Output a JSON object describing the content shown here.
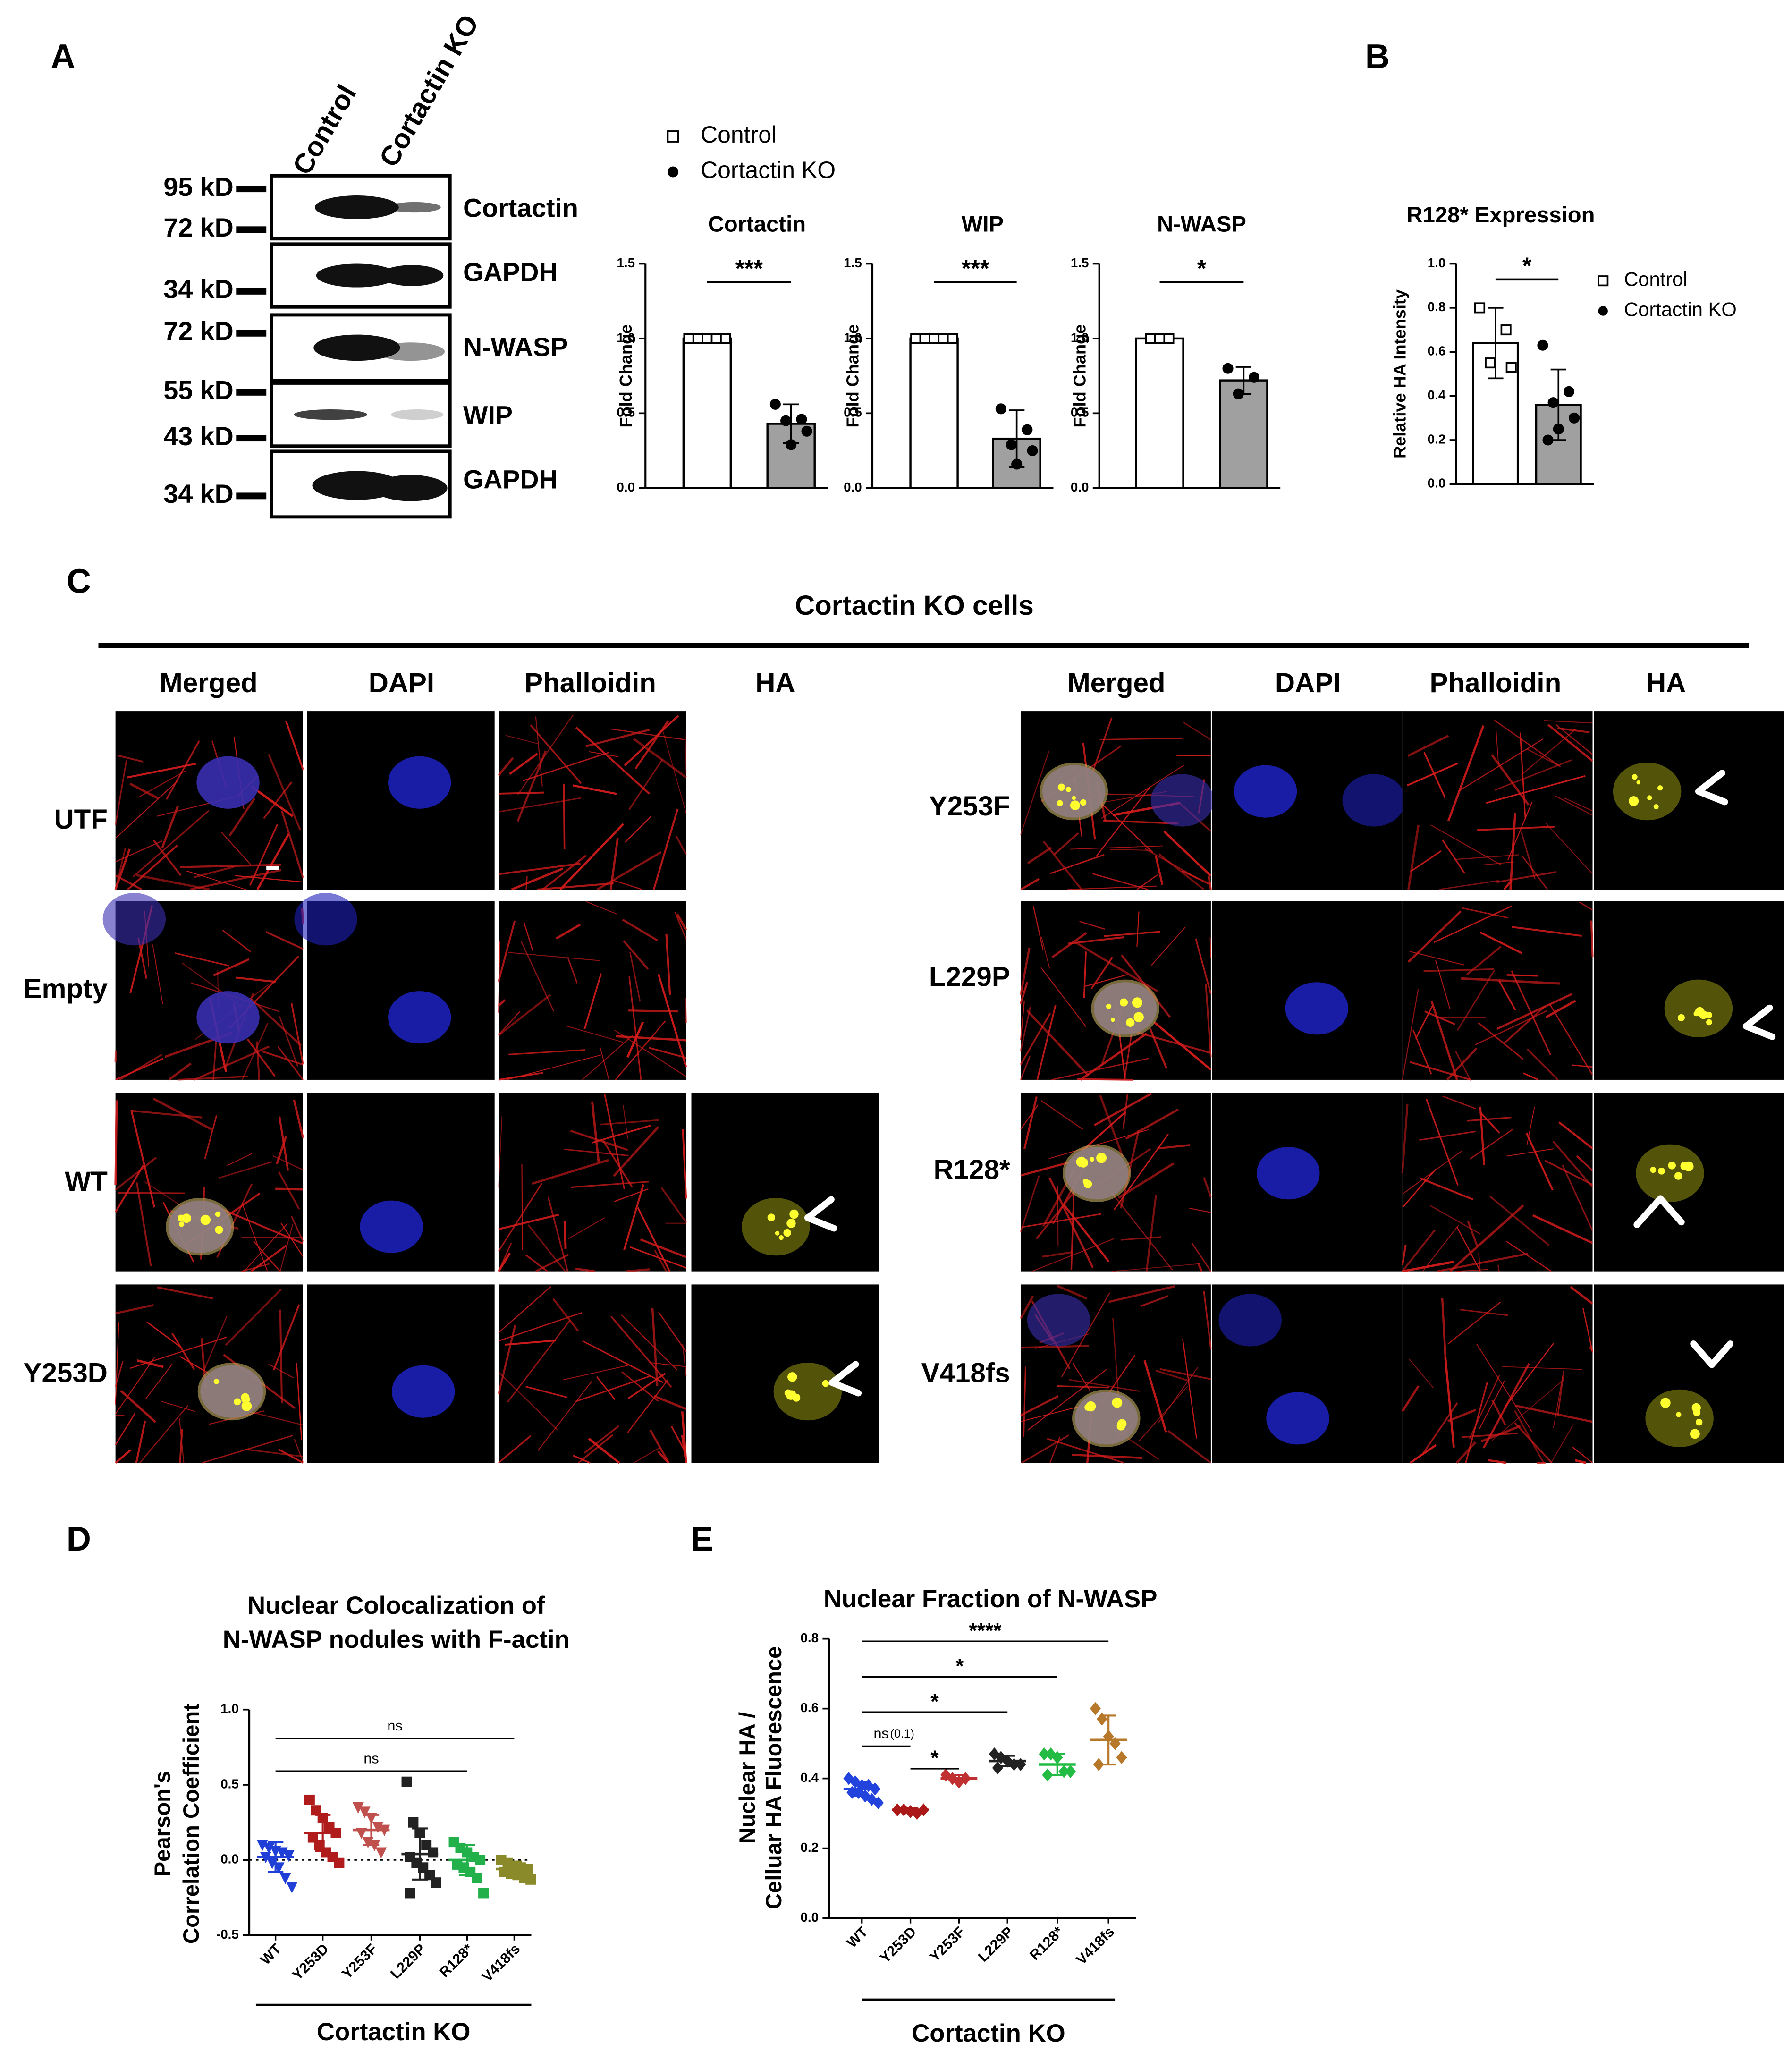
{
  "panel_labels": [
    "A",
    "B",
    "C",
    "D",
    "E"
  ],
  "blot": {
    "lanes": [
      "Control",
      "Cortactin KO"
    ],
    "markers": [
      "95 kD",
      "72 kD",
      "34 kD",
      "72 kD",
      "55 kD",
      "43 kD",
      "34 kD"
    ],
    "proteins": [
      "Cortactin",
      "GAPDH",
      "N-WASP",
      "WIP",
      "GAPDH"
    ]
  },
  "panel_a_legend": [
    "Control",
    "Cortactin KO"
  ],
  "chart_data": [
    {
      "type": "bar",
      "title": "Cortactin",
      "ylabel": "Fold Change",
      "categories": [
        null,
        null
      ],
      "values": [
        1.0,
        0.43
      ],
      "errors": [
        0,
        0.13
      ],
      "points": [
        [
          1,
          1,
          1,
          1,
          1
        ],
        [
          0.56,
          0.46,
          0.45,
          0.38,
          0.29
        ]
      ],
      "colors": [
        "#ffffff",
        "#a0a0a0"
      ],
      "markers": [
        "square",
        "circle"
      ],
      "significance": "***",
      "ylim": [
        0,
        1.5
      ],
      "yticks": [
        {
          "value": 0,
          "label": "0.0"
        },
        0.5,
        {
          "value": 1,
          "label": "1.0"
        },
        1.5
      ]
    },
    {
      "type": "bar",
      "title": "WIP",
      "ylabel": "Fold Change",
      "categories": [
        null,
        null
      ],
      "values": [
        1.0,
        0.33
      ],
      "errors": [
        0,
        0.19
      ],
      "points": [
        [
          1,
          1,
          1,
          1,
          1
        ],
        [
          0.53,
          0.39,
          0.29,
          0.25,
          0.16
        ]
      ],
      "colors": [
        "#ffffff",
        "#a0a0a0"
      ],
      "markers": [
        "square",
        "circle"
      ],
      "significance": "***",
      "ylim": [
        0,
        1.5
      ],
      "yticks": [
        {
          "value": 0,
          "label": "0.0"
        },
        0.5,
        {
          "value": 1,
          "label": "1.0"
        },
        1.5
      ]
    },
    {
      "type": "bar",
      "title": "N-WASP",
      "ylabel": "Fold Change",
      "categories": [
        null,
        null
      ],
      "values": [
        1.0,
        0.72
      ],
      "errors": [
        0,
        0.09
      ],
      "points": [
        [
          1,
          1,
          1
        ],
        [
          0.8,
          0.74,
          0.63
        ]
      ],
      "colors": [
        "#ffffff",
        "#a0a0a0"
      ],
      "markers": [
        "square",
        "circle"
      ],
      "significance": "*",
      "ylim": [
        0,
        1.5
      ],
      "yticks": [
        {
          "value": 0,
          "label": "0.0"
        },
        0.5,
        {
          "value": 1,
          "label": "1.0"
        },
        1.5
      ]
    },
    {
      "type": "bar",
      "title": "R128* Expression",
      "ylabel": "Relative HA Intensity",
      "categories": [
        null,
        null
      ],
      "values": [
        0.64,
        0.36
      ],
      "errors": [
        0.16,
        0.16
      ],
      "points": [
        [
          0.8,
          0.7,
          0.55,
          0.53
        ],
        [
          0.63,
          0.42,
          0.37,
          0.3,
          0.25,
          0.2
        ]
      ],
      "colors": [
        "#ffffff",
        "#a0a0a0"
      ],
      "markers": [
        "square",
        "circle"
      ],
      "significance": "*",
      "legend": [
        "Control",
        "Cortactin KO"
      ],
      "ylim": [
        0,
        1.0
      ],
      "yticks": [
        {
          "value": 0,
          "label": "0.0"
        },
        0.2,
        0.4,
        0.6,
        0.8,
        {
          "value": 1,
          "label": "1.0"
        }
      ]
    },
    {
      "type": "dot",
      "title": [
        "Nuclear Colocalization of",
        "N-WASP nodules with F-actin"
      ],
      "ylabel": [
        "Pearson's",
        "Correlation Coefficient"
      ],
      "group_label": "Cortactin KO",
      "categories": [
        "WT",
        "Y253D",
        "Y253F",
        "L229P",
        "R128*",
        "V418fs"
      ],
      "means": [
        0.02,
        0.18,
        0.2,
        0.04,
        0.0,
        -0.06
      ],
      "sd": [
        0.1,
        0.12,
        0.1,
        0.17,
        0.1,
        0.05
      ],
      "points": [
        [
          0.1,
          0.08,
          0.06,
          0.05,
          0.03,
          0.02,
          -0.02,
          -0.05,
          -0.12,
          -0.18
        ],
        [
          0.4,
          0.33,
          0.28,
          0.22,
          0.18,
          0.15,
          0.1,
          0.05,
          0.02,
          -0.02
        ],
        [
          0.35,
          0.32,
          0.28,
          0.22,
          0.2,
          0.18,
          0.12,
          0.1,
          0.05
        ],
        [
          0.52,
          0.25,
          0.18,
          0.1,
          0.05,
          0.02,
          -0.02,
          -0.05,
          -0.1,
          -0.15,
          -0.22
        ],
        [
          0.12,
          0.08,
          0.05,
          0.02,
          0.0,
          -0.03,
          -0.05,
          -0.08,
          -0.12,
          -0.22
        ],
        [
          0.0,
          -0.02,
          -0.04,
          -0.05,
          -0.06,
          -0.08,
          -0.09,
          -0.1,
          -0.12,
          -0.13
        ]
      ],
      "colors": [
        "#1f3fd6",
        "#b01c1c",
        "#c0504d",
        "#222222",
        "#22b04a",
        "#8a8a2a"
      ],
      "markers": [
        "triangle-down",
        "square",
        "triangle-down",
        "square",
        "square",
        "square"
      ],
      "zero_line": true,
      "annotations": [
        {
          "text": "ns",
          "from": "WT",
          "to": "V418fs"
        },
        {
          "text": "ns",
          "from": "WT",
          "to": "R128*"
        }
      ],
      "ylim": [
        -0.5,
        1.0
      ],
      "yticks": [
        -0.5,
        {
          "value": 0,
          "label": "0.0"
        },
        0.5,
        {
          "value": 1,
          "label": "1.0"
        }
      ]
    },
    {
      "type": "dot",
      "title": "Nuclear Fraction of N-WASP",
      "ylabel": [
        "Nuclear HA /",
        "Celluar HA Fluorescence"
      ],
      "group_label": "Cortactin KO",
      "categories": [
        "WT",
        "Y253D",
        "Y253F",
        "L229P",
        "R128*",
        "V418fs"
      ],
      "means": [
        0.37,
        0.31,
        0.4,
        0.45,
        0.44,
        0.51
      ],
      "sd": [
        0.02,
        0.005,
        0.01,
        0.015,
        0.03,
        0.07
      ],
      "points": [
        [
          0.4,
          0.39,
          0.38,
          0.38,
          0.37,
          0.36,
          0.36,
          0.35,
          0.34,
          0.33
        ],
        [
          0.31,
          0.31,
          0.305,
          0.3,
          0.31
        ],
        [
          0.41,
          0.4,
          0.39,
          0.4
        ],
        [
          0.47,
          0.46,
          0.45,
          0.44,
          0.44,
          0.43
        ],
        [
          0.47,
          0.47,
          0.46,
          0.42,
          0.42,
          0.41
        ],
        [
          0.6,
          0.57,
          0.52,
          0.5,
          0.46,
          0.44
        ]
      ],
      "colors": [
        "#2244dd",
        "#aa1818",
        "#c03030",
        "#222222",
        "#22bb44",
        "#b8782a"
      ],
      "markers": [
        "diamond",
        "diamond",
        "diamond",
        "diamond",
        "diamond",
        "diamond"
      ],
      "zero_line": false,
      "annotations": [
        {
          "text": "****",
          "from": "WT",
          "to": "V418fs"
        },
        {
          "text": "*",
          "from": "WT",
          "to": "R128*"
        },
        {
          "text": "*",
          "from": "WT",
          "to": "L229P"
        },
        {
          "text": "ns",
          "note": "(0.1)",
          "from": "WT",
          "to": "Y253D"
        },
        {
          "text": "*",
          "from": "Y253D",
          "to": "Y253F"
        }
      ],
      "ylim": [
        0,
        0.8
      ],
      "yticks": [
        {
          "value": 0,
          "label": "0.0"
        },
        0.2,
        0.4,
        0.6,
        0.8
      ]
    }
  ],
  "panel_c": {
    "title": "Cortactin KO cells",
    "left": {
      "columns": [
        "Merged",
        "DAPI",
        "Phalloidin",
        "HA"
      ],
      "rows": [
        "UTF",
        "Empty",
        "WT",
        "Y253D"
      ]
    },
    "right": {
      "columns": [
        "Merged",
        "DAPI",
        "Phalloidin",
        "HA"
      ],
      "rows": [
        "Y253F",
        "L229P",
        "R128*",
        "V418fs"
      ]
    }
  }
}
